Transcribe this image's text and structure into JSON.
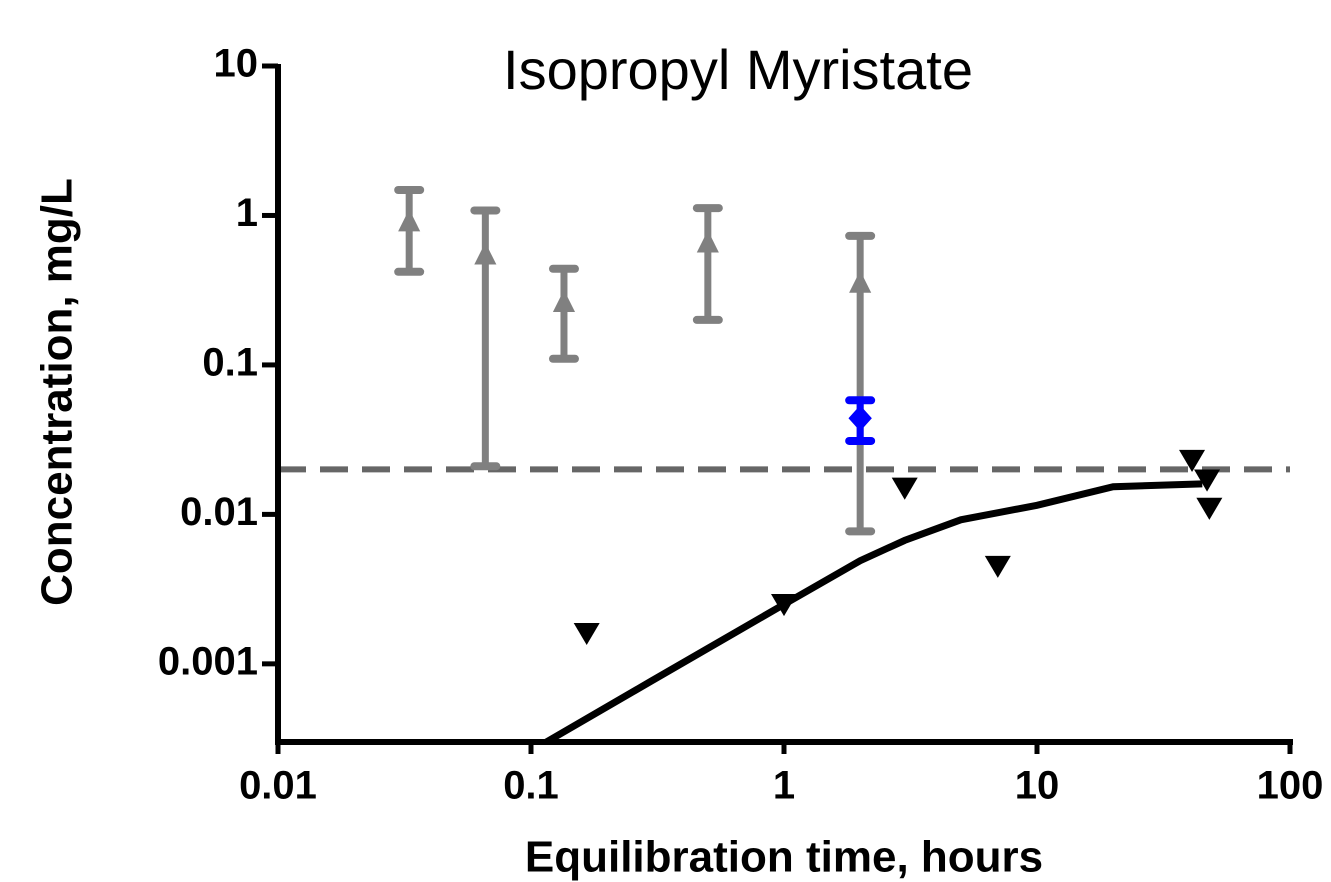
{
  "chart_data": {
    "type": "scatter",
    "title": "Isopropyl Myristate",
    "x_label": "Equilibration time, hours",
    "y_label": "Concentration, mg/L",
    "x_scale": "log",
    "y_scale": "log",
    "xlim": [
      0.01,
      100
    ],
    "ylim": [
      0.0003,
      10
    ],
    "xticks": [
      0.01,
      0.1,
      1,
      10,
      100
    ],
    "yticks": [
      10,
      1,
      0.1,
      0.01,
      0.001
    ],
    "series": [
      {
        "style": "errorbar",
        "marker": "triangle-up",
        "color": "#808080",
        "x": [
          0.033,
          0.066,
          0.135,
          0.5,
          2
        ],
        "values": [
          0.9,
          0.54,
          0.26,
          0.65,
          0.35
        ],
        "lower": [
          0.42,
          0.021,
          0.11,
          0.2,
          0.0077
        ],
        "upper": [
          1.48,
          1.08,
          0.44,
          1.12,
          0.73
        ]
      },
      {
        "style": "errorbar",
        "marker": "diamond",
        "color": "#0000ff",
        "x": [
          2
        ],
        "values": [
          0.044
        ],
        "lower": [
          0.031
        ],
        "upper": [
          0.058
        ]
      },
      {
        "style": "points",
        "marker": "triangle-down",
        "color": "#000000",
        "x": [
          0.166,
          1,
          3,
          7,
          41,
          47,
          48
        ],
        "values": [
          0.0016,
          0.0025,
          0.015,
          0.0045,
          0.023,
          0.017,
          0.011
        ]
      },
      {
        "style": "line",
        "color": "#000000",
        "x": [
          0.115,
          0.3,
          1,
          2,
          3,
          5,
          10,
          20,
          45
        ],
        "values": [
          0.0003,
          0.00077,
          0.0025,
          0.0049,
          0.0067,
          0.0092,
          0.0115,
          0.0153,
          0.016
        ]
      }
    ],
    "hline": {
      "value": 0.02,
      "color": "#666666",
      "dashed": true
    }
  }
}
